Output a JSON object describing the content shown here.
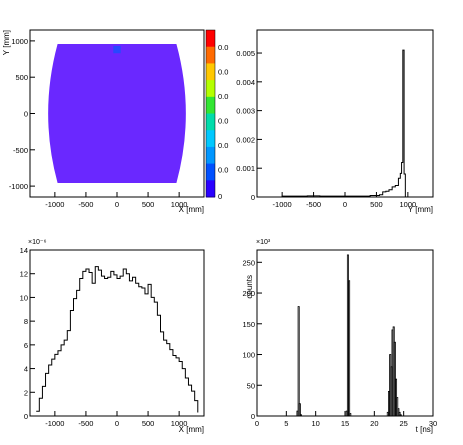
{
  "chart_data": [
    {
      "type": "heatmap",
      "title": "",
      "xlabel": "X [mm]",
      "ylabel": "Y [mm]",
      "xlim": [
        -1400,
        1400
      ],
      "ylim": [
        -1150,
        1150
      ],
      "x_ticks": [
        "-1000",
        "-500",
        "0",
        "500",
        "1000"
      ],
      "y_ticks": [
        "-1000",
        "-500",
        "0",
        "500",
        "1000"
      ],
      "colorbar_labels": [
        "0",
        "0.0",
        "0.0",
        "0.0",
        "0.0",
        "0.0",
        "0.0"
      ],
      "colors": [
        "#ff0000",
        "#ff6a00",
        "#ffc800",
        "#b4ff00",
        "#32e632",
        "#00dcaa",
        "#00c8ff",
        "#0096ff",
        "#0050ff",
        "#2a00ff"
      ],
      "shape_fill_color": "#6a28ff",
      "hotspot_color": "#2848ff",
      "shape": {
        "x_half_width": 950,
        "y_top": 950,
        "y_bottom": -950,
        "widest": 1250
      }
    },
    {
      "type": "line",
      "title": "",
      "xlabel": "Y [mm]",
      "ylabel": "",
      "xlim": [
        -1400,
        1400
      ],
      "ylim": [
        0,
        0.0058
      ],
      "x_ticks": [
        "-1000",
        "-500",
        "0",
        "500",
        "1000"
      ],
      "y_ticks": [
        "0",
        "0.001",
        "0.002",
        "0.003",
        "0.004",
        "0.005"
      ],
      "x": [
        -1250,
        -1000,
        -800,
        -600,
        -400,
        -200,
        0,
        200,
        400,
        550,
        600,
        650,
        700,
        750,
        800,
        850,
        880,
        900,
        920,
        940,
        960
      ],
      "y": [
        0,
        3e-05,
        3e-05,
        4e-05,
        3e-05,
        3e-05,
        3e-05,
        3e-05,
        5e-05,
        8e-05,
        0.00018,
        0.0002,
        0.00025,
        0.00035,
        0.0004,
        0.00065,
        0.00082,
        0.0012,
        0.0051,
        0.0008,
        0
      ]
    },
    {
      "type": "line",
      "title": "",
      "xlabel": "X [mm]",
      "ylabel": "",
      "exponent_label": "×10⁻⁶",
      "xlim": [
        -1400,
        1400
      ],
      "ylim": [
        0,
        14
      ],
      "x_ticks": [
        "-1000",
        "-500",
        "0",
        "500",
        "1000"
      ],
      "y_ticks": [
        "0",
        "2",
        "4",
        "6",
        "8",
        "10",
        "12",
        "14"
      ],
      "x": [
        -1300,
        -1250,
        -1200,
        -1150,
        -1100,
        -1050,
        -1000,
        -950,
        -900,
        -850,
        -800,
        -750,
        -700,
        -650,
        -600,
        -550,
        -500,
        -450,
        -400,
        -350,
        -300,
        -250,
        -200,
        -150,
        -100,
        -50,
        0,
        50,
        100,
        150,
        200,
        250,
        300,
        350,
        400,
        450,
        500,
        550,
        600,
        650,
        700,
        750,
        800,
        850,
        900,
        950,
        1000,
        1050,
        1100,
        1150,
        1200,
        1250,
        1300
      ],
      "y": [
        0.4,
        1.5,
        2.5,
        3.6,
        4.3,
        4.8,
        5.2,
        5.5,
        6.0,
        6.4,
        7.2,
        8.9,
        9.9,
        10.6,
        11.6,
        12.2,
        12.4,
        12.1,
        11.2,
        12.6,
        12.3,
        11.8,
        11.6,
        11.7,
        12.2,
        11.9,
        11.6,
        11.8,
        12.4,
        12.0,
        11.4,
        11.7,
        11.2,
        10.9,
        10.8,
        10.3,
        11.1,
        10.0,
        9.6,
        8.5,
        7.1,
        6.4,
        6.1,
        5.6,
        5.1,
        4.9,
        4.6,
        4.0,
        3.2,
        2.6,
        2.1,
        1.3,
        0.3
      ]
    },
    {
      "type": "bar",
      "title": "",
      "xlabel": "t [ns]",
      "ylabel": "counts",
      "exponent_label": "×10³",
      "xlim": [
        0,
        30
      ],
      "ylim": [
        0,
        270
      ],
      "x_ticks": [
        "0",
        "5",
        "10",
        "15",
        "20",
        "25",
        "30"
      ],
      "y_ticks": [
        "0",
        "50",
        "100",
        "150",
        "200",
        "250"
      ],
      "x": [
        6.8,
        7.0,
        7.2,
        7.4,
        15.2,
        15.4,
        15.6,
        15.8,
        22.2,
        22.4,
        22.6,
        22.8,
        23.0,
        23.2,
        23.4,
        23.6,
        23.8,
        24.0,
        24.2,
        24.4
      ],
      "values": [
        8,
        178,
        20,
        2,
        8,
        262,
        220,
        4,
        6,
        40,
        100,
        80,
        140,
        145,
        120,
        60,
        30,
        12,
        6,
        2
      ]
    }
  ]
}
